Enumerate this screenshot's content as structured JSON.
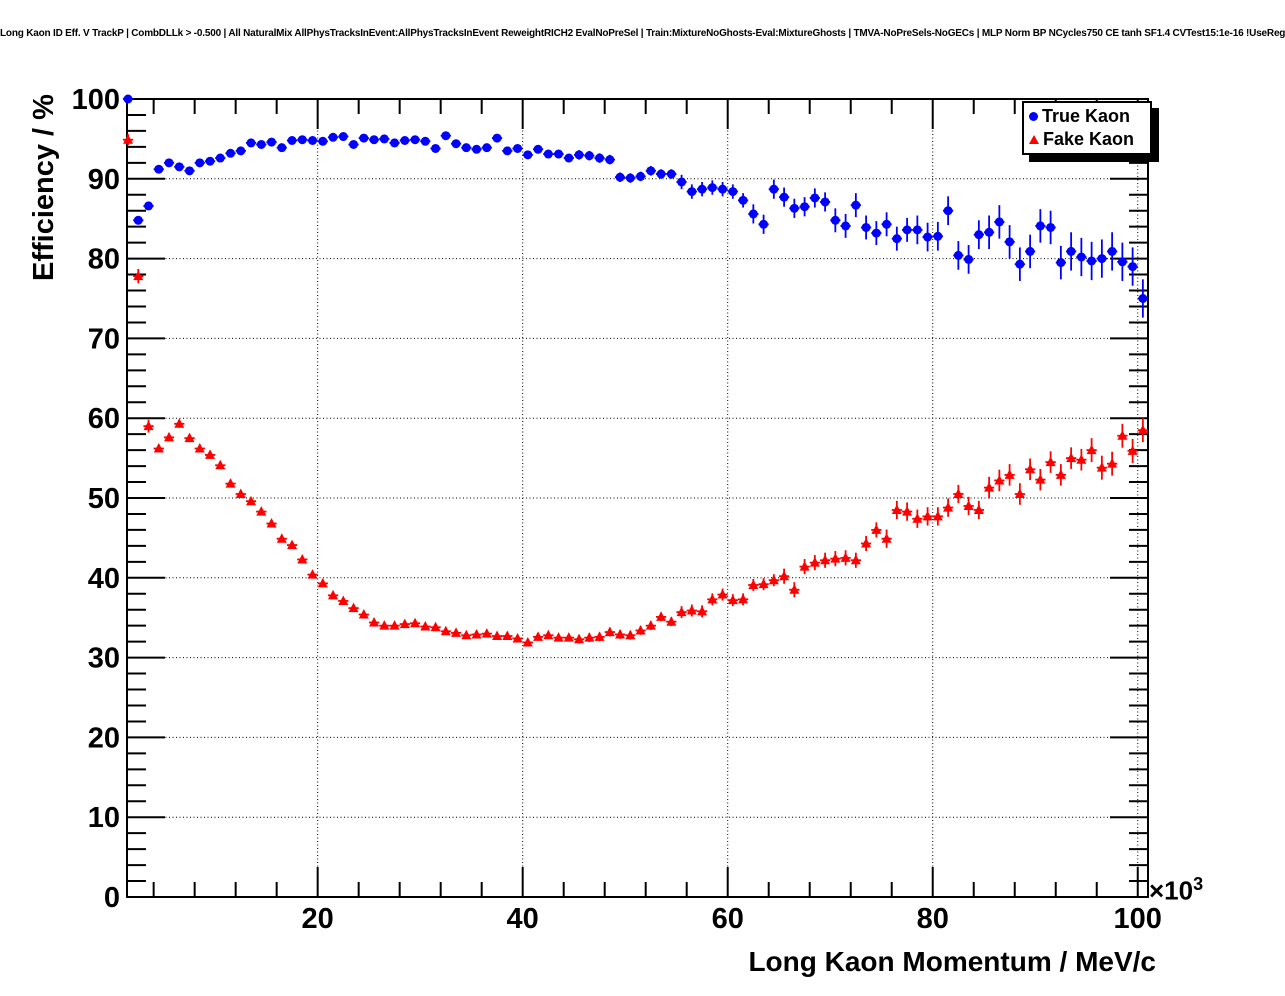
{
  "chart_data": {
    "type": "scatter",
    "title": "Long Kaon ID Eff. V TrackP | CombDLLk > -0.500 | All NaturalMix AllPhysTracksInEvent:AllPhysTracksInEvent ReweightRICH2 EvalNoPreSel | Train:MixtureNoGhosts-Eval:MixtureGhosts | TMVA-NoPreSels-NoGECs | MLP Norm BP NCycles750 CE tanh SF1.4 CVTest15:1e-16 !UseReg",
    "xlabel": "Long Kaon Momentum / MeV/c",
    "ylabel": "Efficiency / %",
    "x_exponent_base": "×10",
    "x_exponent_power": "3",
    "x_units_scale": 1000,
    "xlim": [
      1.4,
      101.0
    ],
    "ylim": [
      0,
      100
    ],
    "grid": "dotted lines at major ticks, both axes",
    "legend_position": "top-right",
    "x_major_ticks": [
      20,
      40,
      60,
      80,
      100
    ],
    "x_tick_labels": [
      "20",
      "40",
      "60",
      "80",
      "100"
    ],
    "x_minor_step": 4,
    "y_major_ticks": [
      0,
      10,
      20,
      30,
      40,
      50,
      60,
      70,
      80,
      90,
      100
    ],
    "y_tick_labels": [
      "0",
      "10",
      "20",
      "30",
      "40",
      "50",
      "60",
      "70",
      "80",
      "90",
      "100"
    ],
    "y_minor_step": 2,
    "xerr_halfwidth": 0.5,
    "x": [
      1.5,
      2.5,
      3.5,
      4.5,
      5.5,
      6.5,
      7.5,
      8.5,
      9.5,
      10.5,
      11.5,
      12.5,
      13.5,
      14.5,
      15.5,
      16.5,
      17.5,
      18.5,
      19.5,
      20.5,
      21.5,
      22.5,
      23.5,
      24.5,
      25.5,
      26.5,
      27.5,
      28.5,
      29.5,
      30.5,
      31.5,
      32.5,
      33.5,
      34.5,
      35.5,
      36.5,
      37.5,
      38.5,
      39.5,
      40.5,
      41.5,
      42.5,
      43.5,
      44.5,
      45.5,
      46.5,
      47.5,
      48.5,
      49.5,
      50.5,
      51.5,
      52.5,
      53.5,
      54.5,
      55.5,
      56.5,
      57.5,
      58.5,
      59.5,
      60.5,
      61.5,
      62.5,
      63.5,
      64.5,
      65.5,
      66.5,
      67.5,
      68.5,
      69.5,
      70.5,
      71.5,
      72.5,
      73.5,
      74.5,
      75.5,
      76.5,
      77.5,
      78.5,
      79.5,
      80.5,
      81.5,
      82.5,
      83.5,
      84.5,
      85.5,
      86.5,
      87.5,
      88.5,
      89.5,
      90.5,
      91.5,
      92.5,
      93.5,
      94.5,
      95.5,
      96.5,
      97.5,
      98.5,
      99.5,
      100.5
    ],
    "series": [
      {
        "name": "True Kaon",
        "marker": "circle",
        "color": "#0000ff",
        "values": [
          100.0,
          84.8,
          86.6,
          91.2,
          92.0,
          91.5,
          91.0,
          92.0,
          92.2,
          92.6,
          93.2,
          93.5,
          94.5,
          94.3,
          94.6,
          93.9,
          94.8,
          94.9,
          94.8,
          94.7,
          95.2,
          95.3,
          94.3,
          95.1,
          94.9,
          95.0,
          94.5,
          94.8,
          94.9,
          94.7,
          93.8,
          95.4,
          94.4,
          93.9,
          93.7,
          93.9,
          95.1,
          93.5,
          93.8,
          93.0,
          93.7,
          93.1,
          93.1,
          92.6,
          93.0,
          92.9,
          92.6,
          92.4,
          90.2,
          90.1,
          90.3,
          91.0,
          90.6,
          90.6,
          89.6,
          88.4,
          88.7,
          88.9,
          88.7,
          88.4,
          87.3,
          85.6,
          84.3,
          88.7,
          87.7,
          86.3,
          86.5,
          87.6,
          87.1,
          84.8,
          84.1,
          86.7,
          83.9,
          83.2,
          84.3,
          82.5,
          83.6,
          83.6,
          82.7,
          82.8,
          86.0,
          80.4,
          79.9,
          83.0,
          83.3,
          84.6,
          82.1,
          79.3,
          80.9,
          84.1,
          83.9,
          79.5,
          80.9,
          80.2,
          79.7,
          80.0,
          80.9,
          79.6,
          79.0,
          75.0
        ],
        "yerr": [
          0.05,
          0.35,
          0.35,
          0.35,
          0.35,
          0.35,
          0.35,
          0.35,
          0.35,
          0.3,
          0.3,
          0.3,
          0.3,
          0.3,
          0.3,
          0.3,
          0.3,
          0.3,
          0.3,
          0.3,
          0.3,
          0.3,
          0.3,
          0.3,
          0.3,
          0.3,
          0.3,
          0.3,
          0.3,
          0.45,
          0.45,
          0.45,
          0.45,
          0.45,
          0.45,
          0.45,
          0.45,
          0.45,
          0.45,
          0.45,
          0.45,
          0.45,
          0.45,
          0.45,
          0.6,
          0.6,
          0.6,
          0.6,
          0.6,
          0.6,
          0.6,
          0.6,
          0.6,
          0.6,
          0.9,
          0.9,
          0.9,
          0.9,
          0.9,
          0.9,
          0.9,
          1.2,
          1.2,
          1.2,
          1.2,
          1.2,
          1.2,
          1.2,
          1.2,
          1.5,
          1.5,
          1.5,
          1.5,
          1.5,
          1.5,
          1.5,
          1.5,
          1.8,
          1.8,
          1.8,
          1.8,
          1.8,
          1.8,
          1.8,
          2.1,
          2.1,
          2.1,
          2.1,
          2.1,
          2.1,
          2.1,
          2.1,
          2.4,
          2.4,
          2.4,
          2.4,
          2.4,
          2.4,
          2.4,
          2.4
        ]
      },
      {
        "name": "Fake Kaon",
        "marker": "triangle",
        "color": "#ff0000",
        "values": [
          94.9,
          77.8,
          59.0,
          56.2,
          57.6,
          59.3,
          57.5,
          56.2,
          55.4,
          54.1,
          51.8,
          50.5,
          49.6,
          48.3,
          46.8,
          44.9,
          44.1,
          42.3,
          40.4,
          39.3,
          37.8,
          37.1,
          36.2,
          35.4,
          34.4,
          34.0,
          34.0,
          34.2,
          34.3,
          33.9,
          33.8,
          33.3,
          33.1,
          32.8,
          32.9,
          33.0,
          32.7,
          32.7,
          32.4,
          31.9,
          32.6,
          32.8,
          32.5,
          32.5,
          32.3,
          32.5,
          32.6,
          33.2,
          32.9,
          32.8,
          33.4,
          34.0,
          35.1,
          34.5,
          35.7,
          35.9,
          35.8,
          37.3,
          37.9,
          37.2,
          37.3,
          39.1,
          39.2,
          39.7,
          40.2,
          38.5,
          41.4,
          41.9,
          42.2,
          42.4,
          42.5,
          42.2,
          44.3,
          46.0,
          44.9,
          48.5,
          48.3,
          47.4,
          47.7,
          47.7,
          48.8,
          50.5,
          49.0,
          48.5,
          51.3,
          52.2,
          52.9,
          50.5,
          53.6,
          52.3,
          54.5,
          52.9,
          55.0,
          54.8,
          56.0,
          53.8,
          54.3,
          57.8,
          55.9,
          58.5
        ],
        "yerr": [
          0.7,
          0.9,
          0.8,
          0.5,
          0.5,
          0.5,
          0.5,
          0.5,
          0.5,
          0.35,
          0.35,
          0.35,
          0.35,
          0.35,
          0.35,
          0.35,
          0.35,
          0.35,
          0.35,
          0.35,
          0.35,
          0.35,
          0.35,
          0.35,
          0.35,
          0.35,
          0.35,
          0.35,
          0.35,
          0.4,
          0.4,
          0.4,
          0.4,
          0.4,
          0.4,
          0.4,
          0.4,
          0.4,
          0.4,
          0.4,
          0.4,
          0.4,
          0.4,
          0.4,
          0.55,
          0.55,
          0.55,
          0.55,
          0.55,
          0.55,
          0.55,
          0.55,
          0.55,
          0.55,
          0.75,
          0.75,
          0.75,
          0.75,
          0.75,
          0.75,
          0.75,
          0.75,
          0.75,
          0.75,
          0.95,
          0.95,
          0.95,
          0.95,
          0.95,
          0.95,
          0.95,
          0.95,
          0.95,
          0.95,
          1.15,
          1.15,
          1.15,
          1.15,
          1.15,
          1.15,
          1.15,
          1.15,
          1.15,
          1.15,
          1.35,
          1.35,
          1.35,
          1.35,
          1.35,
          1.35,
          1.35,
          1.35,
          1.35,
          1.35,
          1.5,
          1.5,
          1.5,
          1.5,
          1.5,
          1.5
        ]
      }
    ]
  },
  "colors": {
    "true_kaon": "#0000ff",
    "fake_kaon": "#ff0000",
    "frame": "#000000",
    "grid": "#000000",
    "text": "#000000",
    "background": "#ffffff",
    "legend_shadow": "#000000"
  }
}
